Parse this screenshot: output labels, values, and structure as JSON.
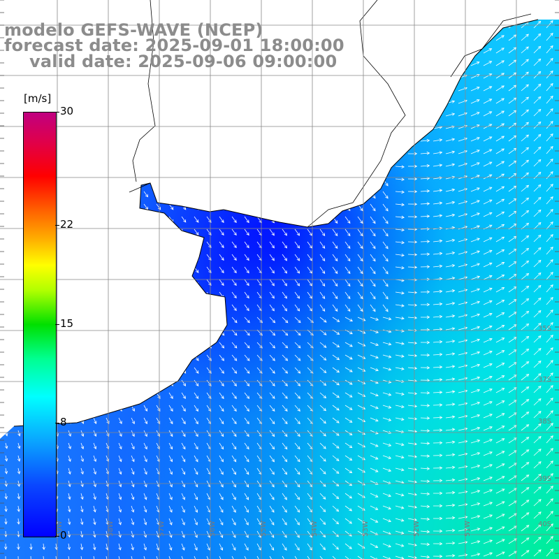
{
  "title": {
    "line1": "modelo GEFS-WAVE (NCEP)",
    "line2": "forecast date: 2025-09-01 18:00:00",
    "line3": "valid date: 2025-09-06 09:00:00"
  },
  "colorbar": {
    "unit": "[m/s]",
    "ticks": [
      {
        "label": "30",
        "value": 30
      },
      {
        "label": "22",
        "value": 22
      },
      {
        "label": "15",
        "value": 15
      },
      {
        "label": "8",
        "value": 8
      },
      {
        "label": "0",
        "value": 0
      }
    ],
    "range": [
      0,
      30
    ],
    "colors": [
      "#0000ff",
      "#0aa0ff",
      "#00ffff",
      "#00e000",
      "#ffff00",
      "#ff6000",
      "#ff0000",
      "#c00080"
    ]
  },
  "map": {
    "variable": "wind speed",
    "land_color": "#ffffff",
    "grid_color": "#888888",
    "lat_labels": [
      "35S",
      "37S",
      "38S",
      "39S",
      "40S"
    ],
    "lon_labels": [
      "59W",
      "58W",
      "57W",
      "56W",
      "55W",
      "54W",
      "53W",
      "52W",
      "51W"
    ]
  }
}
